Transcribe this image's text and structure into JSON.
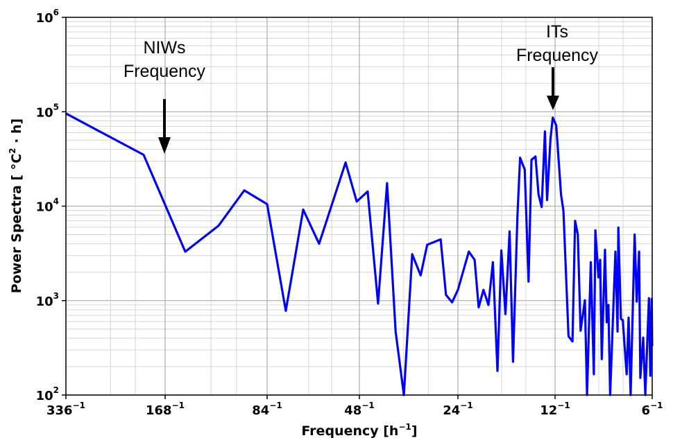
{
  "chart_data": {
    "type": "line",
    "title": "",
    "xlabel": "Frequency [h",
    "xlabel_sup": "−1",
    "xlabel_end": "]",
    "ylabel": "Power Spectra [ °C",
    "ylabel_sup": "2",
    "ylabel_end": " · h]",
    "x_scale": "log (inverse period)",
    "y_scale": "log",
    "ylim": [
      100,
      1000000
    ],
    "grid": true,
    "line_color": "#0000ff",
    "x_ticks": [
      {
        "period": 336,
        "label": "336",
        "sup": "−1"
      },
      {
        "period": 168,
        "label": "168",
        "sup": "−1"
      },
      {
        "period": 84,
        "label": "84",
        "sup": "−1"
      },
      {
        "period": 48,
        "label": "48",
        "sup": "−1"
      },
      {
        "period": 24,
        "label": "24",
        "sup": "−1"
      },
      {
        "period": 12,
        "label": "12",
        "sup": "−1"
      },
      {
        "period": 6,
        "label": "6",
        "sup": "−1"
      }
    ],
    "y_ticks": [
      {
        "value": 100,
        "label": "10",
        "sup": "2"
      },
      {
        "value": 1000,
        "label": "10",
        "sup": "3"
      },
      {
        "value": 10000,
        "label": "10",
        "sup": "4"
      },
      {
        "value": 100000,
        "label": "10",
        "sup": "5"
      },
      {
        "value": 1000000,
        "label": "10",
        "sup": "6"
      }
    ],
    "series": [
      {
        "period_h": [
          336,
          195.2,
          146.5,
          116.9,
          98.1,
          84,
          75.0,
          67.5,
          61.3,
          52.2,
          48.8,
          45.3,
          42.1,
          39.5,
          37.2,
          35.1,
          33.1,
          31.2,
          29.8,
          27.1,
          26.1,
          25.0,
          24.0,
          22.2,
          21.3,
          20.7,
          20.0,
          19.3,
          18.7,
          18.1,
          17.6,
          17.1,
          16.6,
          16.2,
          15.7,
          15.4,
          14.9,
          14.5,
          14.2,
          13.8,
          13.5,
          13.2,
          12.9,
          12.7,
          12.4,
          12.2,
          11.9,
          11.5,
          11.3,
          10.9,
          10.6,
          10.4,
          10.2,
          10.0,
          9.7,
          9.55,
          9.3,
          9.1,
          9.0,
          8.8,
          8.7,
          8.6,
          8.4,
          8.3,
          8.2,
          8.1,
          7.8,
          7.68,
          7.64,
          7.5,
          7.4,
          7.2,
          7.1,
          7.0,
          6.8,
          6.7,
          6.59,
          6.53,
          6.4,
          6.3,
          6.14,
          6.08,
          6.02,
          6.0
        ],
        "values": [
          96000,
          35000,
          3300,
          6200,
          14700,
          10500,
          780,
          9200,
          4000,
          29000,
          11200,
          14300,
          930,
          17500,
          470,
          100,
          3100,
          1850,
          3900,
          4450,
          1150,
          960,
          1300,
          3300,
          2700,
          850,
          1300,
          900,
          2550,
          180,
          3400,
          720,
          5400,
          225,
          7600,
          32600,
          24400,
          1590,
          31000,
          33600,
          13300,
          9800,
          61800,
          11600,
          51400,
          86700,
          71900,
          13300,
          8900,
          420,
          370,
          7000,
          5000,
          480,
          1010,
          100,
          2550,
          166,
          5540,
          1760,
          2700,
          240,
          3450,
          590,
          900,
          100,
          3300,
          470,
          5930,
          640,
          620,
          166,
          660,
          100,
          5000,
          975,
          3300,
          152,
          405,
          100,
          1060,
          160,
          1040,
          330
        ]
      }
    ],
    "annotations": [
      {
        "line1": "NIWs",
        "line2": "Frequency",
        "period": 168
      },
      {
        "line1": "ITs",
        "line2": "Frequency",
        "period": 12
      }
    ]
  }
}
